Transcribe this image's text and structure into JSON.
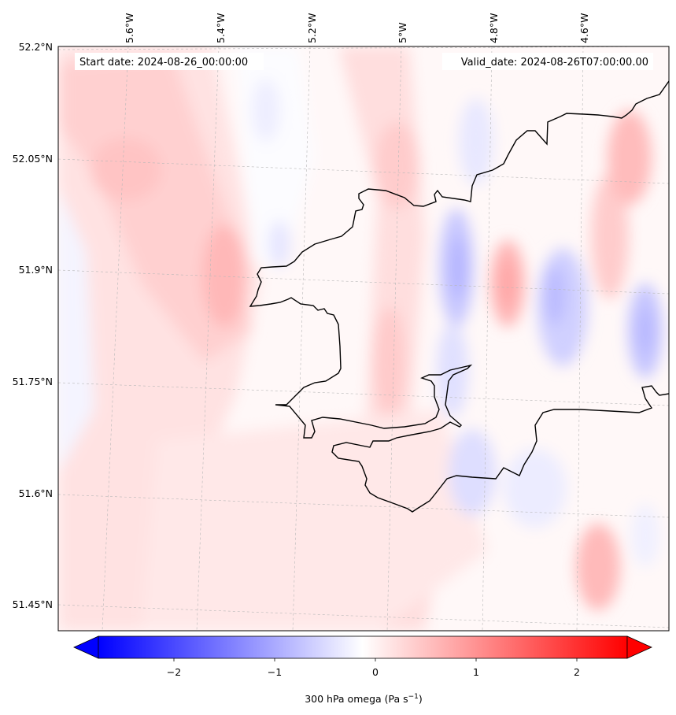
{
  "header": {
    "start_date": "Start date: 2024-08-26_00:00:00",
    "valid_date": "Valid_date: 2024-08-26T07:00:00.00"
  },
  "axes": {
    "lon_labels": [
      "5.6°W",
      "5.4°W",
      "5.2°W",
      "5°W",
      "4.8°W",
      "4.6°W"
    ],
    "lat_labels": [
      "52.2°N",
      "52.05°N",
      "51.9°N",
      "51.75°N",
      "51.6°N",
      "51.45°N"
    ]
  },
  "colorbar": {
    "label_prefix": "300 hPa omega (Pa s",
    "label_exp": "−1",
    "label_suffix": ")",
    "ticks": [
      "−2",
      "−1",
      "0",
      "1",
      "2"
    ],
    "tick_values": [
      -2,
      -1,
      0,
      1,
      2
    ],
    "range": [
      -2.75,
      2.5
    ],
    "colormap": "bwr",
    "extend": "both",
    "colors": {
      "neg": "#0000ff",
      "zero": "#ffffff",
      "pos": "#ff0000"
    }
  },
  "colors": {
    "coastline": "#000000",
    "gridline": "#b0b0b0",
    "frame": "#000000"
  }
}
